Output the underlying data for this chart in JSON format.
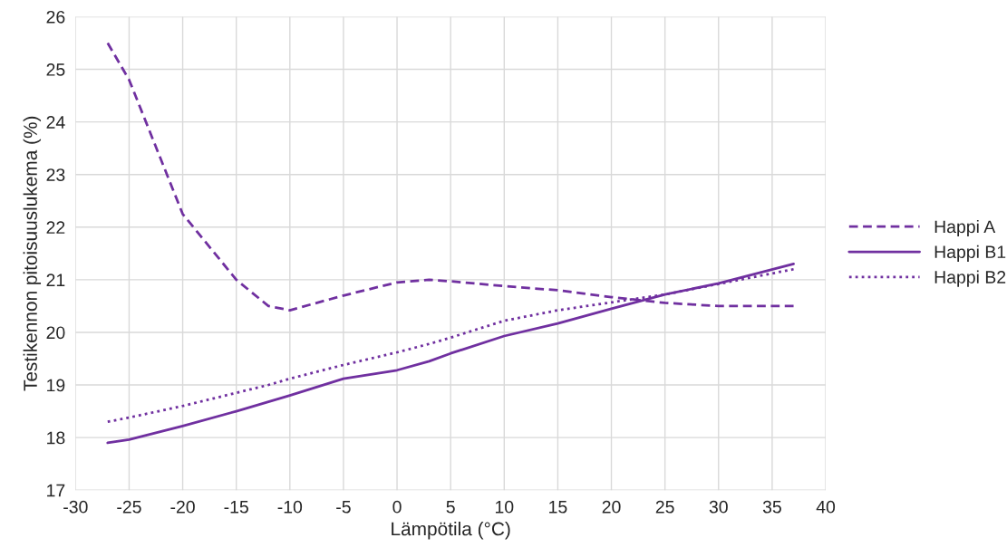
{
  "chart_data": {
    "type": "line",
    "xlabel": "Lämpötila (°C)",
    "ylabel": "Testikennon pitoisuuslukema (%)",
    "x": [
      -27,
      -25,
      -20,
      -15,
      -12,
      -10,
      -5,
      0,
      3,
      5,
      10,
      15,
      20,
      25,
      30,
      37
    ],
    "series": [
      {
        "name": "Happi A",
        "color": "#7030a0",
        "line_style": "dashed",
        "values": [
          25.5,
          24.8,
          22.25,
          21.0,
          20.5,
          20.42,
          20.7,
          20.95,
          21.0,
          20.97,
          20.88,
          20.8,
          20.67,
          20.56,
          20.5,
          20.5
        ]
      },
      {
        "name": "Happi B1",
        "color": "#7030a0",
        "line_style": "solid",
        "values": [
          17.9,
          17.96,
          18.22,
          18.5,
          18.68,
          18.8,
          19.12,
          19.28,
          19.45,
          19.6,
          19.93,
          20.17,
          20.45,
          20.72,
          20.93,
          21.3
        ]
      },
      {
        "name": "Happi B2",
        "color": "#7030a0",
        "line_style": "dotted",
        "values": [
          18.3,
          18.38,
          18.6,
          18.85,
          19.0,
          19.12,
          19.38,
          19.62,
          19.78,
          19.9,
          20.22,
          20.42,
          20.57,
          20.72,
          20.92,
          21.2
        ]
      }
    ],
    "xlim": [
      -30,
      40
    ],
    "xticks": [
      -30,
      -25,
      -20,
      -15,
      -10,
      -5,
      0,
      5,
      10,
      15,
      20,
      25,
      30,
      35,
      40
    ],
    "ylim": [
      17,
      26
    ],
    "yticks": [
      17,
      18,
      19,
      20,
      21,
      22,
      23,
      24,
      25,
      26
    ],
    "grid": true,
    "legend": "right",
    "marker": "none"
  }
}
